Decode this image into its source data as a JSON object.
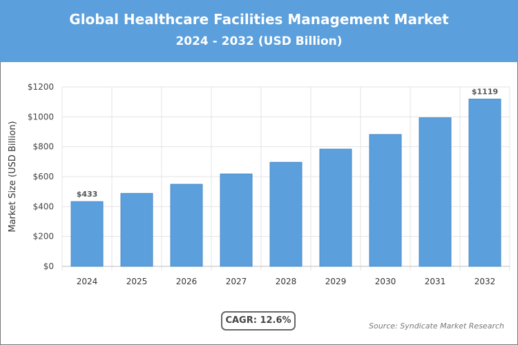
{
  "chart_data": {
    "type": "bar",
    "title": "Global Healthcare Facilities Management Market",
    "subtitle": "2024 - 2032 (USD Billion)",
    "categories": [
      "2024",
      "2025",
      "2026",
      "2027",
      "2028",
      "2029",
      "2030",
      "2031",
      "2032"
    ],
    "values": [
      433,
      488,
      549,
      618,
      696,
      784,
      882,
      994,
      1119
    ],
    "data_labels": {
      "0": "$433",
      "8": "$1119"
    },
    "ylabel": "Market Size (USD Billion)",
    "xlabel": "",
    "ylim": [
      0,
      1200
    ],
    "yticks": [
      0,
      200,
      400,
      600,
      800,
      1000,
      1200
    ],
    "ytick_labels": [
      "$0",
      "$200",
      "$400",
      "$600",
      "$800",
      "$1000",
      "$1200"
    ],
    "grid": true,
    "bar_color": "#5b9fdc",
    "header_color": "#5b9fdc"
  },
  "cagr": "CAGR: 12.6%",
  "source": "Source: Syndicate Market Research"
}
